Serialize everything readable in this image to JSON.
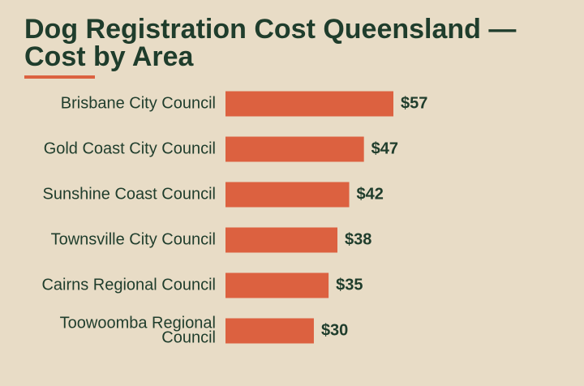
{
  "title": "Dog Registration Cost Queensland — Cost by Area",
  "colors": {
    "background": "#e8dcc6",
    "bar": "#dc6140",
    "text": "#1f3d2c",
    "accent": "#dc6140"
  },
  "chart_data": {
    "type": "bar",
    "orientation": "horizontal",
    "title": "Dog Registration Cost Queensland — Cost by Area",
    "categories": [
      "Brisbane City Council",
      "Gold Coast City Council",
      "Sunshine Coast Council",
      "Townsville City Council",
      "Cairns Regional Council",
      "Toowoomba Regional Council"
    ],
    "values": [
      57,
      47,
      42,
      38,
      35,
      30
    ],
    "value_labels": [
      "$57",
      "$47",
      "$42",
      "$38",
      "$35",
      "$30"
    ],
    "value_prefix": "$",
    "xlabel": "",
    "ylabel": "",
    "xlim": [
      0,
      57
    ],
    "grid": false,
    "legend": "none"
  }
}
